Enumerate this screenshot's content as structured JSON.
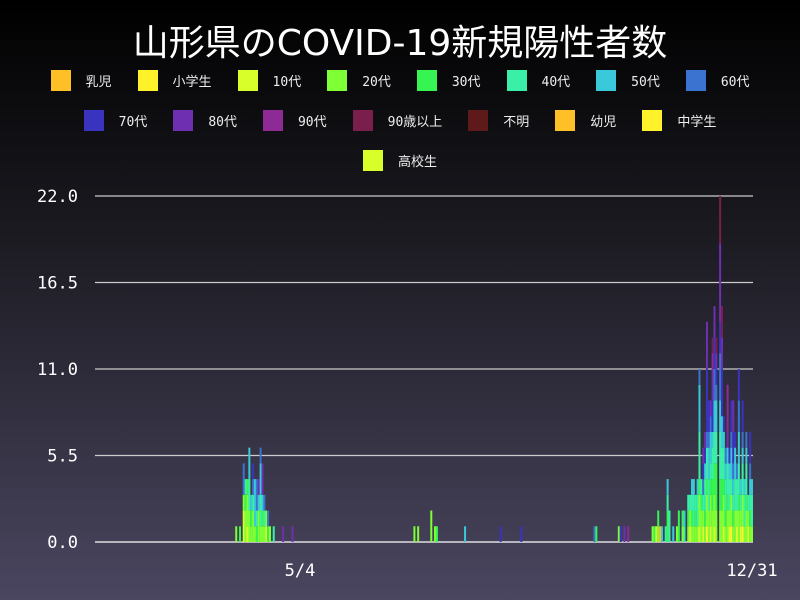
{
  "title": "山形県のCOVID-19新規陽性者数",
  "chart_data": {
    "type": "bar",
    "stacked": true,
    "title": "山形県のCOVID-19新規陽性者数",
    "xlabel": "",
    "ylabel": "",
    "ylim": [
      0,
      22
    ],
    "yticks": [
      "0.0",
      "5.5",
      "11.0",
      "16.5",
      "22.0"
    ],
    "xticks": [
      "5/4",
      "12/31"
    ],
    "grid": "horizontal",
    "legend_placement": "top",
    "series": [
      {
        "name": "乳児",
        "color": "#ffbf27"
      },
      {
        "name": "小学生",
        "color": "#fff22a"
      },
      {
        "name": "10代",
        "color": "#d8ff2a"
      },
      {
        "name": "20代",
        "color": "#7fff35"
      },
      {
        "name": "30代",
        "color": "#36f552"
      },
      {
        "name": "40代",
        "color": "#3aefa8"
      },
      {
        "name": "50代",
        "color": "#3ac9da"
      },
      {
        "name": "60代",
        "color": "#3a74d0"
      },
      {
        "name": "70代",
        "color": "#3a33c0"
      },
      {
        "name": "80代",
        "color": "#6e2fb0"
      },
      {
        "name": "90代",
        "color": "#8e2a96"
      },
      {
        "name": "90歳以上",
        "color": "#7a1f4c"
      },
      {
        "name": "不明",
        "color": "#5e1a1a"
      },
      {
        "name": "幼児",
        "color": "#ffbf27"
      },
      {
        "name": "中学生",
        "color": "#fff22a"
      },
      {
        "name": "高校生",
        "color": "#d8ff2a"
      }
    ],
    "days": [
      [
        "3/31",
        {
          "20代": 1
        }
      ],
      [
        "4/2",
        {
          "30代": 1
        }
      ],
      [
        "4/4",
        {
          "10代": 2,
          "20代": 1,
          "60代": 2
        }
      ],
      [
        "4/5",
        {
          "20代": 2,
          "30代": 1,
          "40代": 1
        }
      ],
      [
        "4/6",
        {
          "10代": 1,
          "20代": 2,
          "30代": 1
        }
      ],
      [
        "4/7",
        {
          "20代": 2,
          "40代": 2,
          "50代": 2
        }
      ],
      [
        "4/8",
        {
          "20代": 1,
          "30代": 1,
          "50代": 1
        }
      ],
      [
        "4/9",
        {
          "20代": 2,
          "40代": 1,
          "60代": 1,
          "70代": 1
        }
      ],
      [
        "4/10",
        {
          "20代": 1,
          "50代": 3
        }
      ],
      [
        "4/11",
        {
          "30代": 1,
          "40代": 1,
          "60代": 2
        }
      ],
      [
        "4/12",
        {
          "20代": 2,
          "50代": 1,
          "80代": 1
        }
      ],
      [
        "4/13",
        {
          "20代": 1,
          "40代": 2,
          "50代": 2,
          "60代": 1
        }
      ],
      [
        "4/14",
        {
          "20代": 1,
          "30代": 1,
          "50代": 1,
          "80代": 2
        }
      ],
      [
        "4/15",
        {
          "20代": 1,
          "40代": 1,
          "60代": 1
        }
      ],
      [
        "4/16",
        {
          "10代": 1,
          "20代": 1
        }
      ],
      [
        "4/17",
        {
          "30代": 1,
          "60代": 1
        }
      ],
      [
        "4/18",
        {
          "20代": 1
        }
      ],
      [
        "4/20",
        {
          "40代": 1
        }
      ],
      [
        "4/25",
        {
          "80代": 1
        }
      ],
      [
        "4/30",
        {
          "80代": 1
        }
      ],
      [
        "7/4",
        {
          "20代": 1
        }
      ],
      [
        "7/6",
        {
          "20代": 1
        }
      ],
      [
        "7/13",
        {
          "20代": 2
        }
      ],
      [
        "7/15",
        {
          "20代": 1
        }
      ],
      [
        "7/16",
        {
          "30代": 1
        }
      ],
      [
        "7/31",
        {
          "50代": 1
        }
      ],
      [
        "8/19",
        {
          "70代": 1
        }
      ],
      [
        "8/30",
        {
          "70代": 1
        }
      ],
      [
        "10/8",
        {
          "60代": 1
        }
      ],
      [
        "10/9",
        {
          "30代": 1
        }
      ],
      [
        "10/21",
        {
          "20代": 1
        }
      ],
      [
        "10/22",
        {
          "70代": 1
        }
      ],
      [
        "10/24",
        {
          "80代": 1
        }
      ],
      [
        "10/26",
        {
          "90代": 1
        }
      ],
      [
        "11/8",
        {
          "20代": 1
        }
      ],
      [
        "11/9",
        {
          "30代": 1
        }
      ],
      [
        "11/10",
        {
          "10代": 1
        }
      ],
      [
        "11/11",
        {
          "20代": 1,
          "30代": 1
        }
      ],
      [
        "11/12",
        {
          "幼児": 1
        }
      ],
      [
        "11/13",
        {
          "50代": 1
        }
      ],
      [
        "11/15",
        {
          "40代": 1
        }
      ],
      [
        "11/16",
        {
          "30代": 2,
          "40代": 1,
          "50代": 1
        }
      ],
      [
        "11/17",
        {
          "40代": 2
        }
      ],
      [
        "11/19",
        {
          "50代": 1
        }
      ],
      [
        "11/21",
        {
          "20代": 1
        }
      ],
      [
        "11/22",
        {
          "30代": 2
        }
      ],
      [
        "11/24",
        {
          "20代": 1,
          "30代": 1
        }
      ],
      [
        "11/25",
        {
          "40代": 1,
          "50代": 1
        }
      ],
      [
        "11/27",
        {
          "20代": 1,
          "30代": 1,
          "40代": 1
        }
      ],
      [
        "11/28",
        {
          "10代": 1,
          "20代": 1,
          "40代": 1
        }
      ],
      [
        "11/29",
        {
          "20代": 1,
          "30代": 1,
          "40代": 1,
          "50代": 1
        }
      ],
      [
        "11/30",
        {
          "20代": 1,
          "40代": 2,
          "50代": 1
        }
      ],
      [
        "12/1",
        {
          "20代": 1,
          "30代": 1,
          "40代": 1
        }
      ],
      [
        "12/2",
        {
          "20代": 1,
          "40代": 2,
          "50代": 1
        }
      ],
      [
        "12/3",
        {
          "10代": 1,
          "20代": 2,
          "30代": 1,
          "40代": 3,
          "50代": 3,
          "60代": 1
        }
      ],
      [
        "12/4",
        {
          "20代": 2,
          "30代": 1,
          "40代": 1
        }
      ],
      [
        "12/5",
        {
          "10代": 1,
          "20代": 1,
          "40代": 1,
          "60代": 1,
          "70代": 1,
          "80代": 1
        }
      ],
      [
        "12/6",
        {
          "20代": 1,
          "30代": 1,
          "40代": 2,
          "50代": 1,
          "70代": 1,
          "80代": 1
        }
      ],
      [
        "12/7",
        {
          "小学生": 1,
          "20代": 2,
          "30代": 1,
          "40代": 2,
          "60代": 1,
          "70代": 4,
          "80代": 3
        }
      ],
      [
        "12/8",
        {
          "20代": 2,
          "40代": 2,
          "50代": 2,
          "60代": 1,
          "70代": 2
        }
      ],
      [
        "12/9",
        {
          "10代": 1,
          "20代": 2,
          "30代": 1,
          "40代": 1,
          "50代": 2,
          "60代": 1,
          "80代": 1
        }
      ],
      [
        "12/10",
        {
          "20代": 2,
          "30代": 2,
          "40代": 2,
          "50代": 1,
          "70代": 2,
          "80代": 2,
          "90代": 1,
          "90歳以上": 1
        }
      ],
      [
        "12/11",
        {
          "10代": 1,
          "20代": 2,
          "30代": 2,
          "40代": 2,
          "50代": 2,
          "60代": 2,
          "70代": 2,
          "80代": 2
        }
      ],
      [
        "12/12",
        {
          "20代": 2,
          "30代": 3,
          "40代": 2,
          "50代": 2,
          "60代": 1,
          "70代": 1,
          "80代": 1,
          "90歳以上": 1
        }
      ],
      [
        "12/14",
        {
          "20代": 2,
          "30代": 2,
          "40代": 3,
          "50代": 2,
          "60代": 3,
          "70代": 2,
          "80代": 5,
          "90歳以上": 3
        }
      ],
      [
        "12/15",
        {
          "20代": 2,
          "30代": 2,
          "40代": 2,
          "50代": 2,
          "70代": 3,
          "80代": 2,
          "90歳以上": 2
        }
      ],
      [
        "12/16",
        {
          "10代": 1,
          "20代": 2,
          "30代": 1,
          "40代": 2,
          "50代": 1,
          "70代": 1
        }
      ],
      [
        "12/17",
        {
          "20代": 1,
          "30代": 1,
          "40代": 2,
          "50代": 1,
          "60代": 1
        }
      ],
      [
        "12/18",
        {
          "20代": 2,
          "30代": 1,
          "40代": 2,
          "50代": 1,
          "80代": 1,
          "90代": 3
        }
      ],
      [
        "12/19",
        {
          "10代": 1,
          "20代": 1,
          "40代": 2,
          "50代": 1,
          "70代": 1
        }
      ],
      [
        "12/20",
        {
          "小学生": 1,
          "20代": 2,
          "40代": 1,
          "50代": 2,
          "60代": 1,
          "70代": 2
        }
      ],
      [
        "12/21",
        {
          "20代": 1,
          "30代": 1,
          "40代": 1,
          "50代": 1,
          "60代": 1,
          "70代": 2,
          "80代": 2
        }
      ],
      [
        "12/22",
        {
          "20代": 2,
          "40代": 2,
          "50代": 2,
          "70代": 1
        }
      ],
      [
        "12/23",
        {
          "10代": 1,
          "20代": 1,
          "40代": 2,
          "60代": 1
        }
      ],
      [
        "12/24",
        {
          "20代": 2,
          "30代": 1,
          "40代": 2,
          "50代": 2,
          "60代": 2,
          "70代": 2
        }
      ],
      [
        "12/25",
        {
          "10代": 1,
          "20代": 1,
          "40代": 1,
          "50代": 1
        }
      ],
      [
        "12/26",
        {
          "小学生": 1,
          "20代": 2,
          "40代": 2,
          "50代": 1,
          "60代": 1,
          "70代": 2
        }
      ],
      [
        "12/27",
        {
          "20代": 1,
          "40代": 2,
          "50代": 1
        }
      ],
      [
        "12/28",
        {
          "20代": 2,
          "30代": 1,
          "40代": 2,
          "50代": 1,
          "60代": 1
        }
      ],
      [
        "12/29",
        {
          "10代": 1,
          "20代": 1,
          "40代": 1
        }
      ],
      [
        "12/30",
        {
          "20代": 1,
          "30代": 1,
          "40代": 1,
          "50代": 1,
          "60代": 1,
          "70代": 2
        }
      ],
      [
        "12/31",
        {
          "20代": 1,
          "40代": 2,
          "50代": 1
        }
      ]
    ]
  }
}
